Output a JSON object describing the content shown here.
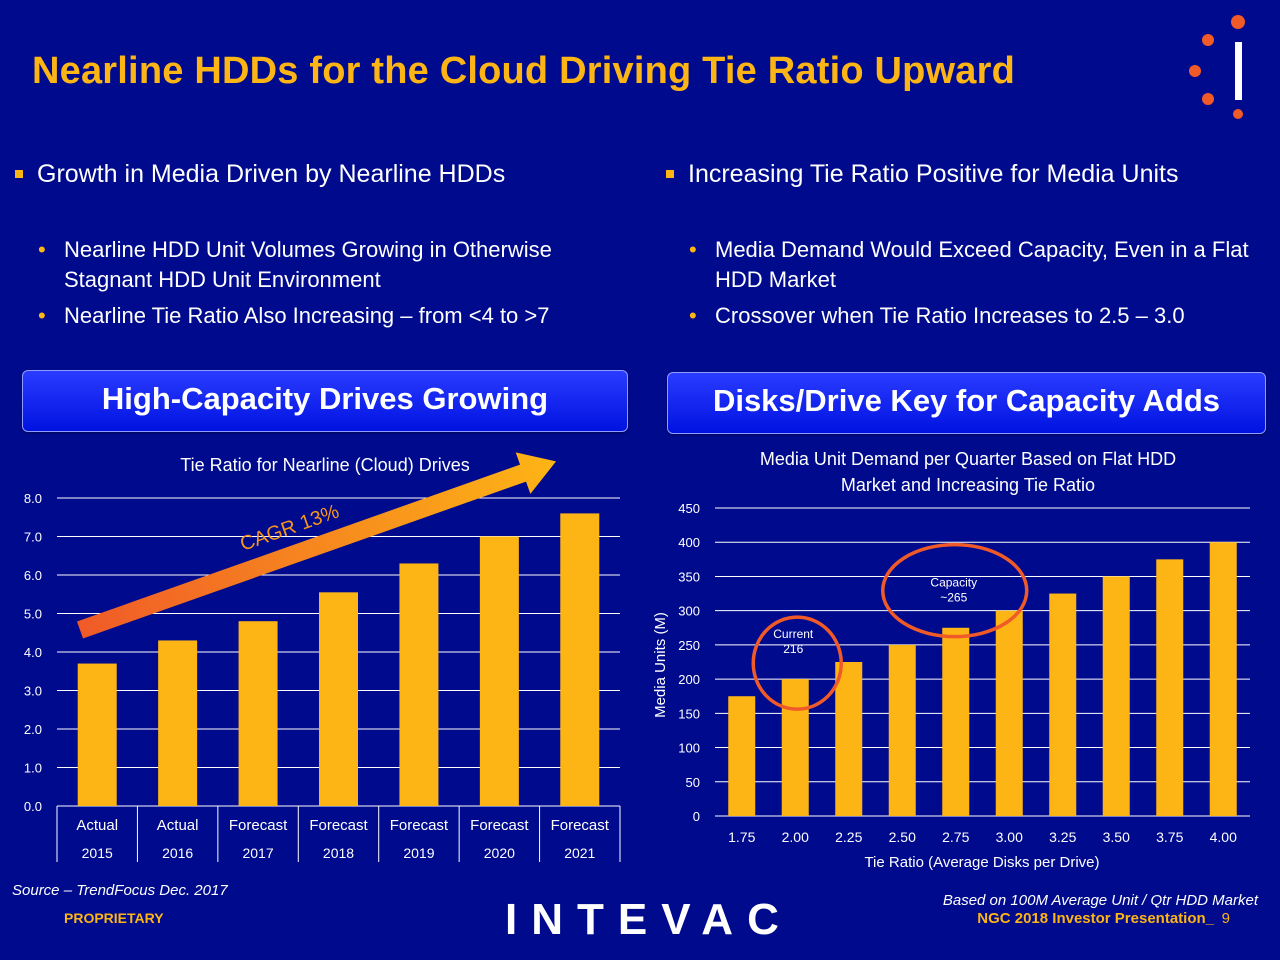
{
  "title": "Nearline HDDs for the Cloud Driving Tie Ratio Upward",
  "left": {
    "heading": "Growth in Media Driven by Nearline HDDs",
    "bullets": [
      "Nearline HDD Unit Volumes Growing in Otherwise Stagnant HDD Unit Environment",
      "Nearline Tie Ratio Also Increasing – from <4 to >7"
    ],
    "banner": "High-Capacity Drives Growing"
  },
  "right": {
    "heading": "Increasing Tie Ratio Positive for Media Units",
    "bullets": [
      "Media Demand Would Exceed Capacity, Even in a Flat HDD Market",
      "Crossover when Tie Ratio Increases to 2.5 – 3.0"
    ],
    "banner": "Disks/Drive Key for Capacity Adds"
  },
  "chart_data": [
    {
      "type": "bar",
      "title": "Tie Ratio for Nearline (Cloud) Drives",
      "categories": [
        {
          "label": "Actual",
          "year": "2015"
        },
        {
          "label": "Actual",
          "year": "2016"
        },
        {
          "label": "Forecast",
          "year": "2017"
        },
        {
          "label": "Forecast",
          "year": "2018"
        },
        {
          "label": "Forecast",
          "year": "2019"
        },
        {
          "label": "Forecast",
          "year": "2020"
        },
        {
          "label": "Forecast",
          "year": "2021"
        }
      ],
      "values": [
        3.7,
        4.3,
        4.8,
        5.55,
        6.3,
        7.0,
        7.6
      ],
      "ylim": [
        0,
        8
      ],
      "yticks": [
        "0.0",
        "1.0",
        "2.0",
        "3.0",
        "4.0",
        "5.0",
        "6.0",
        "7.0",
        "8.0"
      ],
      "grid": true,
      "annotation": "CAGR 13%",
      "bar_color": "#fdb515"
    },
    {
      "type": "bar",
      "title": "Media Unit Demand per Quarter Based on Flat HDD Market and Increasing Tie Ratio",
      "categories": [
        "1.75",
        "2.00",
        "2.25",
        "2.50",
        "2.75",
        "3.00",
        "3.25",
        "3.50",
        "3.75",
        "4.00"
      ],
      "values": [
        175,
        200,
        225,
        250,
        275,
        300,
        325,
        350,
        375,
        400
      ],
      "ylim": [
        0,
        450
      ],
      "yticks": [
        "0",
        "50",
        "100",
        "150",
        "200",
        "250",
        "300",
        "350",
        "400",
        "450"
      ],
      "xlabel": "Tie Ratio (Average Disks per Drive)",
      "ylabel": "Media Units (M)",
      "grid": true,
      "annotations": [
        {
          "lines": [
            "Current",
            "216"
          ],
          "x_index": 1.5,
          "value": 216
        },
        {
          "lines": [
            "Capacity",
            "~265"
          ],
          "x_index": 4.5,
          "value": 265
        }
      ],
      "bar_color": "#fdb515",
      "circle_color": "#f05a28"
    }
  ],
  "footer": {
    "source": "Source – TrendFocus Dec. 2017",
    "proprietary": "PROPRIETARY",
    "logo_text": "INTEVAC",
    "note": "Based on 100M Average Unit / Qtr HDD Market",
    "presentation": "NGC 2018 Investor Presentation_",
    "page": "9"
  }
}
